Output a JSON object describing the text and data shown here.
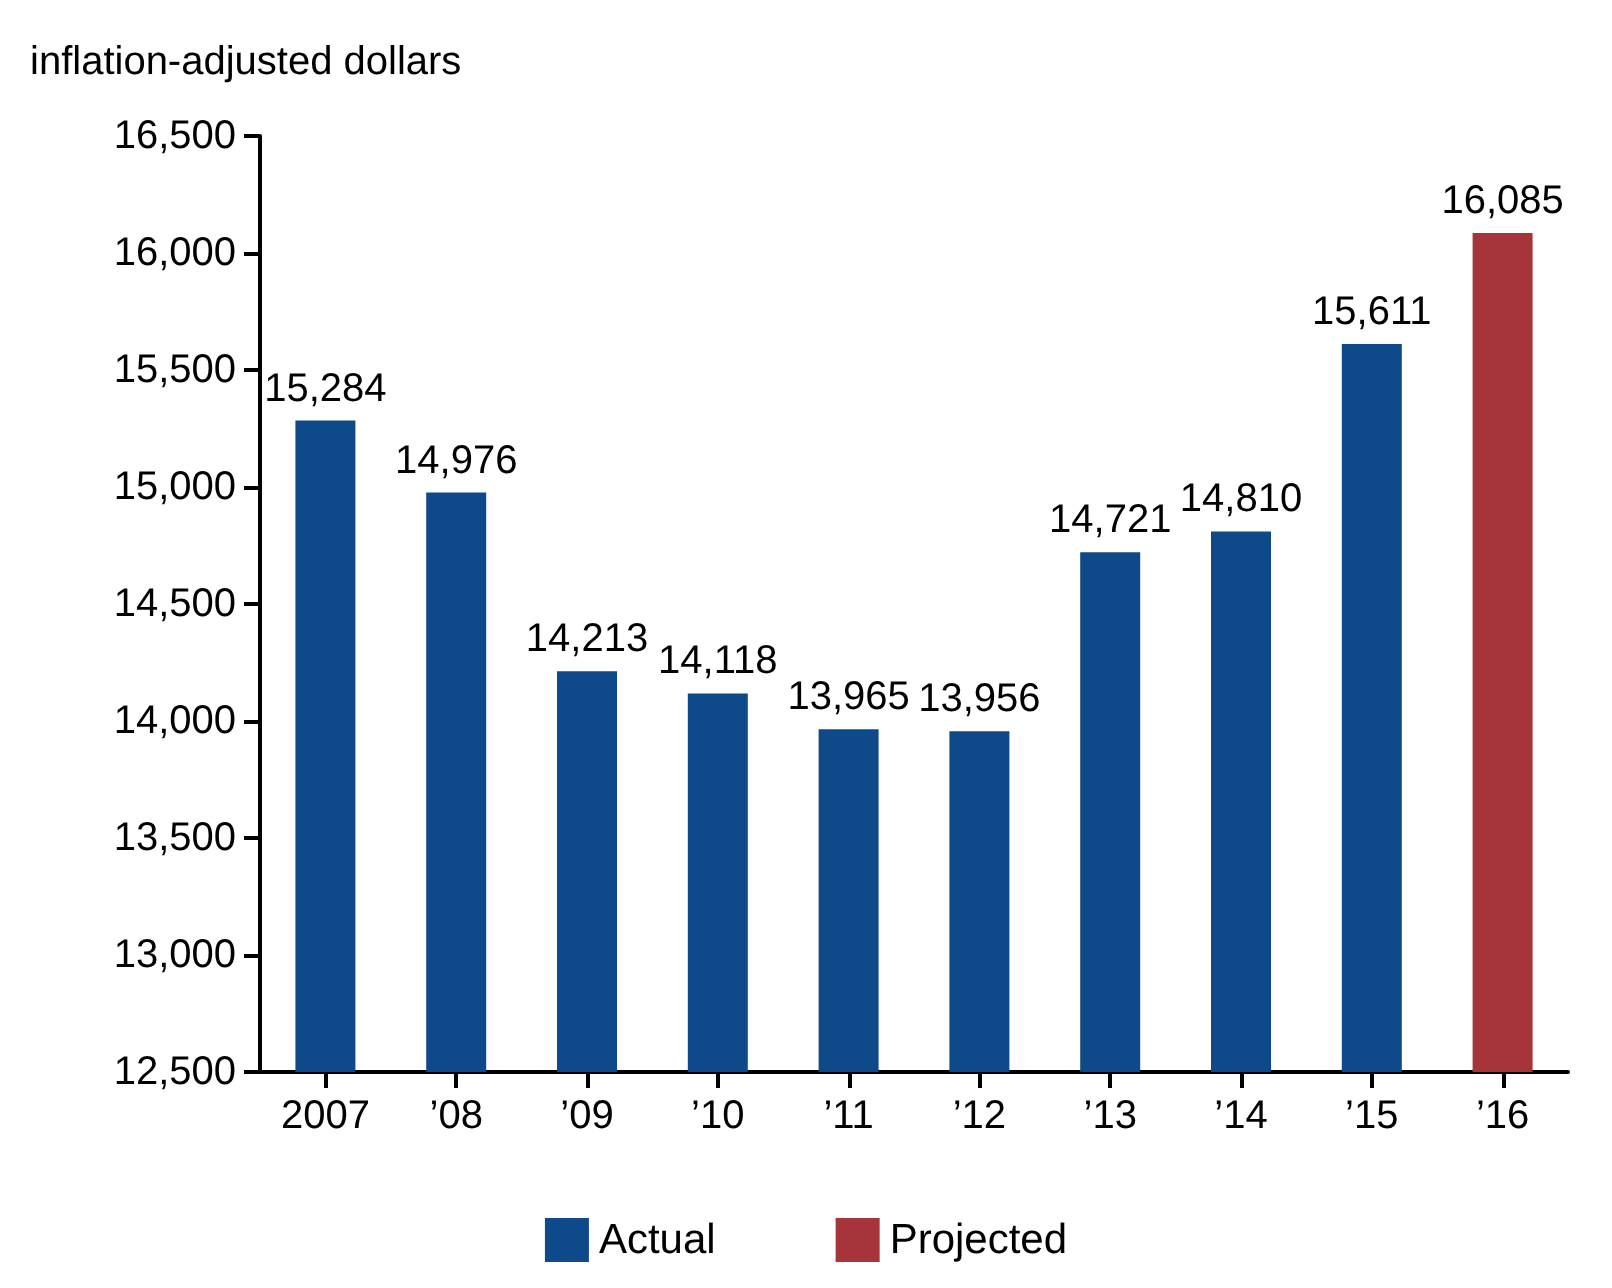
{
  "chart_data": {
    "type": "bar",
    "ylabel": "inflation-adjusted dollars",
    "categories": [
      "2007",
      "’08",
      "’09",
      "’10",
      "’11",
      "’12",
      "’13",
      "’14",
      "’15",
      "’16"
    ],
    "series": [
      {
        "name": "Actual",
        "color": "#0e4a89",
        "values": [
          15284,
          14976,
          14213,
          14118,
          13965,
          13956,
          14721,
          14810,
          15611,
          null
        ],
        "value_labels": [
          "15,284",
          "14,976",
          "14,213",
          "14,118",
          "13,965",
          "13,956",
          "14,721",
          "14,810",
          "15,611",
          null
        ]
      },
      {
        "name": "Projected",
        "color": "#a6343a",
        "values": [
          null,
          null,
          null,
          null,
          null,
          null,
          null,
          null,
          null,
          16085
        ],
        "value_labels": [
          null,
          null,
          null,
          null,
          null,
          null,
          null,
          null,
          null,
          "16,085"
        ]
      }
    ],
    "stacked": true,
    "grid": false,
    "legend": "bottom",
    "ylim": [
      12500,
      16500
    ],
    "yticks": [
      {
        "value": 12500,
        "label": "12,500"
      },
      {
        "value": 13000,
        "label": "13,000"
      },
      {
        "value": 13500,
        "label": "13,500"
      },
      {
        "value": 14000,
        "label": "14,000"
      },
      {
        "value": 14500,
        "label": "14,500"
      },
      {
        "value": 15000,
        "label": "15,000"
      },
      {
        "value": 15500,
        "label": "15,500"
      },
      {
        "value": 16000,
        "label": "16,000"
      },
      {
        "value": 16500,
        "label": "16,500"
      }
    ]
  }
}
